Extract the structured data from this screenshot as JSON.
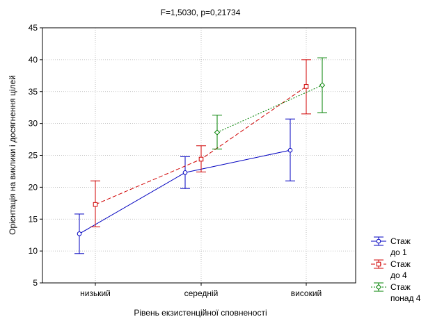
{
  "chart_data": {
    "type": "line",
    "title": "F=1,5030, p=0,21734",
    "xlabel": "Рівень екзистенційної сповненості",
    "ylabel": "Орієнтація на виклики і досягнення цілей",
    "categories": [
      "низький",
      "середній",
      "високий"
    ],
    "ylim": [
      5,
      45
    ],
    "yticks": [
      5,
      10,
      15,
      20,
      25,
      30,
      35,
      40,
      45
    ],
    "grid": true,
    "legend_position": "bottom-right",
    "series": [
      {
        "name": "Стаж до 1",
        "legend_lines": [
          "Стаж",
          "до 1"
        ],
        "color": "#0000c0",
        "line_style": "solid",
        "marker": "circle",
        "values": [
          12.7,
          22.3,
          25.8
        ],
        "lower": [
          9.6,
          19.8,
          21.0
        ],
        "upper": [
          15.8,
          24.8,
          30.7
        ]
      },
      {
        "name": "Стаж до 4",
        "legend_lines": [
          "Стаж",
          "до 4"
        ],
        "color": "#d00000",
        "line_style": "dashed",
        "marker": "square",
        "values": [
          17.3,
          24.4,
          35.8
        ],
        "lower": [
          13.8,
          22.4,
          31.5
        ],
        "upper": [
          21.0,
          26.5,
          40.0
        ]
      },
      {
        "name": "Стаж понад 4",
        "legend_lines": [
          "Стаж",
          "понад 4"
        ],
        "color": "#008000",
        "line_style": "dotted",
        "marker": "diamond",
        "values": [
          null,
          28.6,
          36.0
        ],
        "lower": [
          null,
          26.0,
          31.7
        ],
        "upper": [
          null,
          31.3,
          40.3
        ]
      }
    ]
  }
}
